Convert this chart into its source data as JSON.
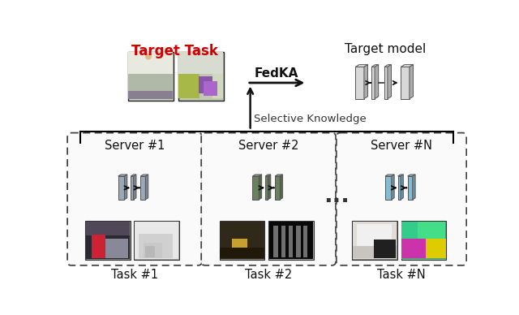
{
  "background_color": "#ffffff",
  "target_task_label": "Target Task",
  "target_task_color": "#cc0000",
  "target_model_label": "Target model",
  "fedka_label": "FedKA",
  "selective_knowledge_label": "Selective Knowledge",
  "server_labels": [
    "Server #1",
    "Server #2",
    "Server #N"
  ],
  "task_labels": [
    "Task #1",
    "Task #2",
    "Task #N"
  ],
  "ellipsis_label": "...",
  "layer_color_s1": "#9aa8b8",
  "layer_color_s2": "#6b8060",
  "layer_color_s3": "#88bbd0",
  "layer_color_target": "#d8d8d8"
}
